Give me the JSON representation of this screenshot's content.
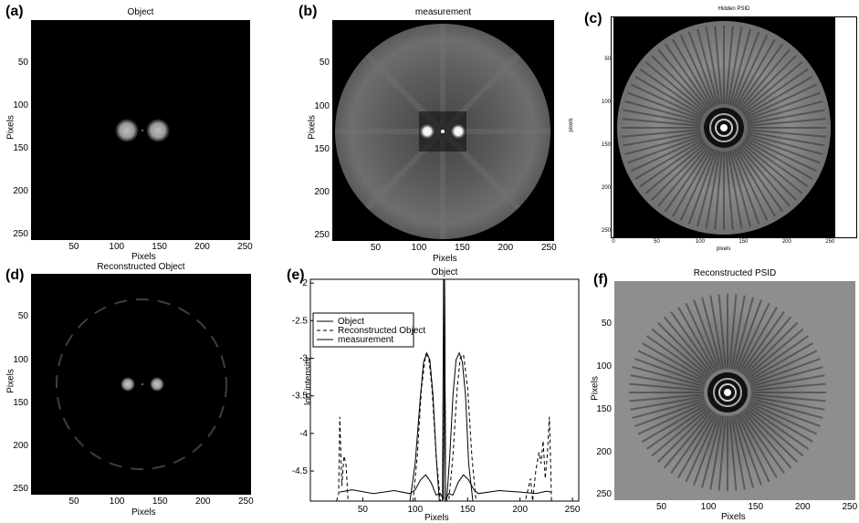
{
  "figure": {
    "panels": [
      {
        "id": "a",
        "label": "(a)",
        "title": "Object",
        "xlabel": "Pixels",
        "ylabel": "Pixels",
        "xticks": [
          "50",
          "100",
          "150",
          "200",
          "250"
        ],
        "yticks": [
          "50",
          "100",
          "150",
          "200",
          "250"
        ]
      },
      {
        "id": "b",
        "label": "(b)",
        "title": "measurement",
        "xlabel": "Pixels",
        "ylabel": "Pixels",
        "xticks": [
          "50",
          "100",
          "150",
          "200",
          "250"
        ],
        "yticks": [
          "50",
          "100",
          "150",
          "200",
          "250"
        ]
      },
      {
        "id": "c",
        "label": "(c)",
        "title": "Hidden PSID",
        "xlabel": "pixels",
        "ylabel": "pixels",
        "xticks": [
          "0",
          "50",
          "100",
          "150",
          "200",
          "250"
        ],
        "yticks": [
          "50",
          "100",
          "150",
          "200",
          "250"
        ]
      },
      {
        "id": "d",
        "label": "(d)",
        "title": "Reconstructed Object",
        "xlabel": "Pixels",
        "ylabel": "Pixels",
        "xticks": [
          "50",
          "100",
          "150",
          "200",
          "250"
        ],
        "yticks": [
          "50",
          "100",
          "150",
          "200",
          "250"
        ]
      },
      {
        "id": "e",
        "label": "(e)",
        "title": "Object",
        "xlabel": "Pixels",
        "ylabel": "log intensity",
        "xticks": [
          "50",
          "100",
          "150",
          "200",
          "250"
        ],
        "yticks": [
          "-2",
          "-2.5",
          "-3",
          "-3.5",
          "-4",
          "-4.5"
        ]
      },
      {
        "id": "f",
        "label": "(f)",
        "title": "Reconstructed PSID",
        "xlabel": "Pixels",
        "ylabel": "Pixels",
        "xticks": [
          "50",
          "100",
          "150",
          "200",
          "250"
        ],
        "yticks": [
          "50",
          "100",
          "150",
          "200",
          "250"
        ]
      }
    ]
  },
  "chart_data": {
    "type": "line",
    "title": "Object",
    "xlabel": "Pixels",
    "ylabel": "log intensity",
    "xlim": [
      0,
      256
    ],
    "ylim": [
      -4.9,
      -1.95
    ],
    "legend_position": "top-left",
    "series": [
      {
        "name": "Object",
        "style": "solid",
        "x": [
          0,
          95,
          100,
          105,
          108,
          111,
          114,
          117,
          120,
          123,
          126,
          127,
          128,
          129,
          130,
          133,
          136,
          139,
          142,
          145,
          148,
          151,
          155,
          160,
          256
        ],
        "y": [
          -4.9,
          -4.9,
          -4.4,
          -3.5,
          -3.05,
          -2.93,
          -3.02,
          -3.5,
          -4.3,
          -4.9,
          -4.9,
          -1.95,
          -1.95,
          -4.9,
          -4.9,
          -4.3,
          -3.5,
          -3.02,
          -2.93,
          -3.05,
          -3.5,
          -4.4,
          -4.9,
          -4.9,
          -4.9
        ]
      },
      {
        "name": "Reconstructed Object",
        "style": "dashed",
        "x": [
          25,
          27,
          28,
          30,
          32,
          34,
          36,
          40,
          60,
          80,
          98,
          102,
          106,
          110,
          113,
          116,
          120,
          124,
          127,
          128,
          129,
          132,
          136,
          140,
          143,
          146,
          150,
          154,
          158,
          170,
          190,
          205,
          210,
          212,
          215,
          218,
          220,
          222,
          224,
          226,
          228,
          229,
          230
        ],
        "y": [
          -4.9,
          -4.8,
          -3.78,
          -4.7,
          -4.3,
          -4.4,
          -4.9,
          -4.9,
          -4.9,
          -4.9,
          -4.9,
          -4.3,
          -3.4,
          -2.95,
          -3.0,
          -3.4,
          -4.3,
          -4.9,
          -4.9,
          -1.95,
          -4.9,
          -4.9,
          -4.3,
          -3.4,
          -3.0,
          -2.95,
          -3.4,
          -4.3,
          -4.9,
          -4.9,
          -4.9,
          -4.9,
          -4.6,
          -4.9,
          -4.5,
          -4.25,
          -4.4,
          -4.1,
          -4.6,
          -4.3,
          -3.78,
          -4.3,
          -4.9
        ]
      },
      {
        "name": "measurement",
        "style": "solid",
        "x": [
          28,
          40,
          60,
          80,
          95,
          100,
          105,
          110,
          115,
          120,
          124,
          127,
          128,
          129,
          132,
          136,
          141,
          146,
          151,
          156,
          160,
          180,
          200,
          215,
          225,
          230
        ],
        "y": [
          -4.78,
          -4.75,
          -4.8,
          -4.76,
          -4.8,
          -4.75,
          -4.62,
          -4.55,
          -4.65,
          -4.82,
          -4.8,
          -4.88,
          -1.95,
          -4.88,
          -4.8,
          -4.82,
          -4.65,
          -4.55,
          -4.62,
          -4.75,
          -4.8,
          -4.76,
          -4.78,
          -4.8,
          -4.77,
          -4.78
        ]
      }
    ]
  }
}
